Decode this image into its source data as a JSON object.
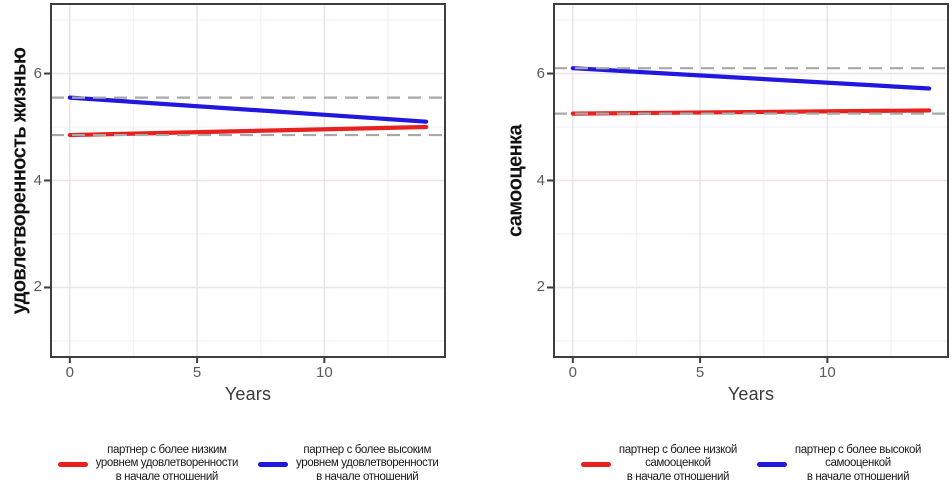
{
  "colors": {
    "red_series": "#E8211E",
    "blue_series": "#2217DF",
    "ref_dashed": "#A8A8A8",
    "grid_major": "#EAE3EC",
    "grid_minor": "#F4F0F6",
    "panel_border": "#3E3E3E",
    "tick_text": "#5A5A5A",
    "background": "#FFFFFF"
  },
  "chart_data": [
    {
      "type": "line",
      "title": "",
      "xlabel": "Years",
      "ylabel": "удовлетворенность жизнью",
      "x_ticks": [
        0,
        5,
        10
      ],
      "y_ticks": [
        2,
        4,
        6
      ],
      "x_minor_ticks": [
        2.5,
        7.5,
        12.5
      ],
      "y_minor_ticks": [
        1,
        3,
        5,
        7
      ],
      "xlim": [
        -0.74,
        14.74
      ],
      "ylim": [
        0.7,
        7.3
      ],
      "grid": true,
      "legend_position": "bottom",
      "ref_line_style": {
        "color": "#A8A8A8",
        "dash": "dashed"
      },
      "series": [
        {
          "name": "партнер с более низким\nуровнем удовлетворенности\nв начале отношений",
          "color": "#E8211E",
          "x": [
            0,
            14
          ],
          "y": [
            4.85,
            5.0
          ],
          "baseline_ref": 4.85
        },
        {
          "name": "партнер с более высоким\nуровнем удовлетворенности\nв начале отношений",
          "color": "#2217DF",
          "x": [
            0,
            14
          ],
          "y": [
            5.55,
            5.1
          ],
          "baseline_ref": 5.55
        }
      ]
    },
    {
      "type": "line",
      "title": "",
      "xlabel": "Years",
      "ylabel": "самооценка",
      "x_ticks": [
        0,
        5,
        10
      ],
      "y_ticks": [
        2,
        4,
        6
      ],
      "x_minor_ticks": [
        2.5,
        7.5,
        12.5
      ],
      "y_minor_ticks": [
        1,
        3,
        5,
        7
      ],
      "xlim": [
        -0.74,
        14.74
      ],
      "ylim": [
        0.7,
        7.3
      ],
      "grid": true,
      "legend_position": "bottom",
      "ref_line_style": {
        "color": "#A8A8A8",
        "dash": "dashed"
      },
      "series": [
        {
          "name": "партнер с более низкой\nсамооценкой\nв начале отношений",
          "color": "#E8211E",
          "x": [
            0,
            14
          ],
          "y": [
            5.25,
            5.31
          ],
          "baseline_ref": 5.25
        },
        {
          "name": "партнер с более высокой\nсамооценкой\nв начале отношений",
          "color": "#2217DF",
          "x": [
            0,
            14
          ],
          "y": [
            6.1,
            5.72
          ],
          "baseline_ref": 6.1
        }
      ]
    }
  ]
}
